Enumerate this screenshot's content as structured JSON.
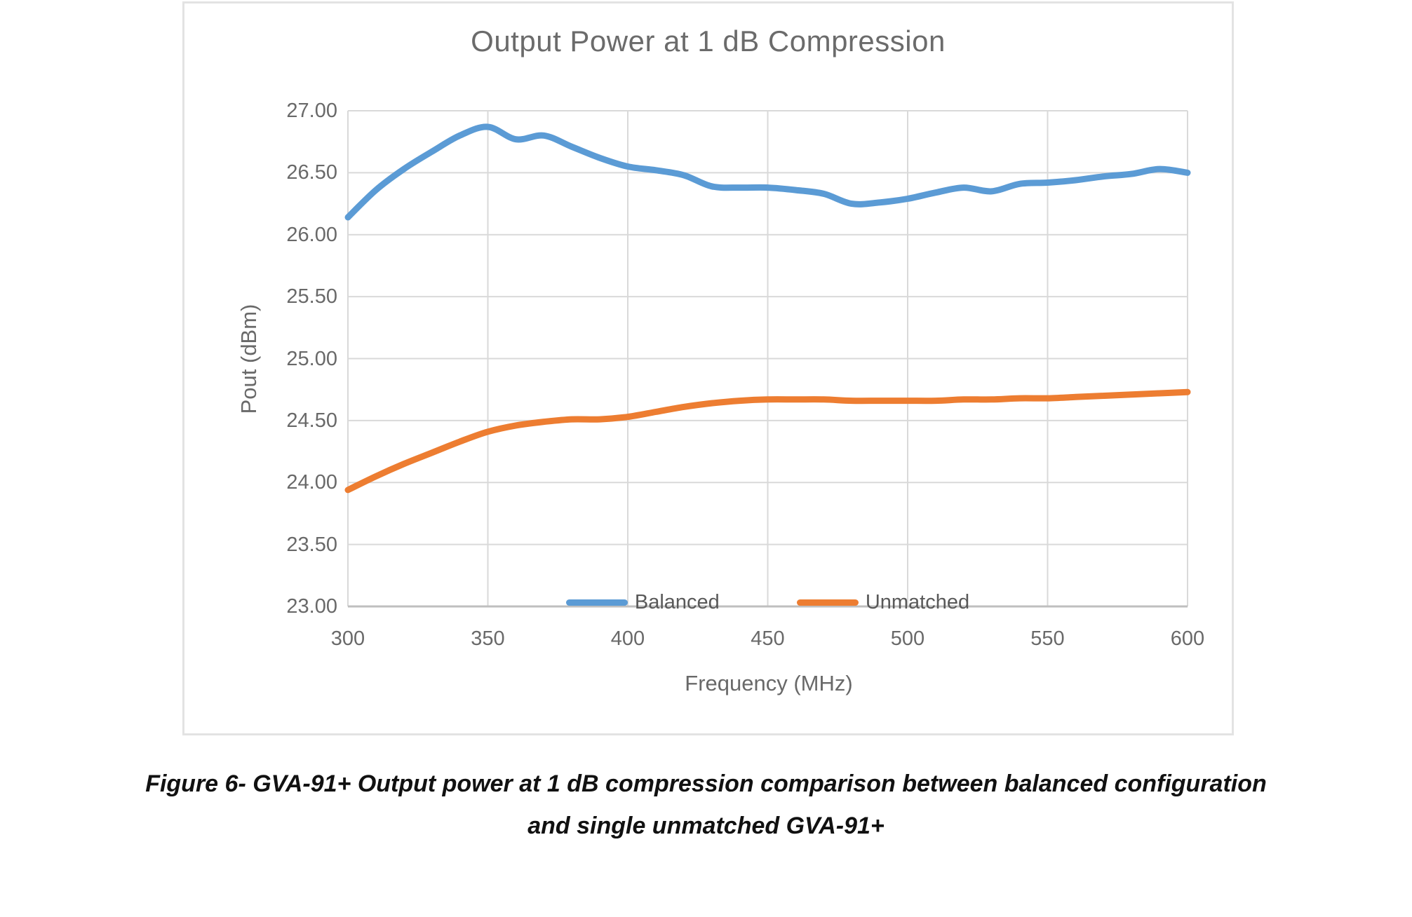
{
  "chart_data": {
    "type": "line",
    "title": "Output Power at 1 dB Compression",
    "xlabel": "Frequency (MHz)",
    "ylabel": "Pout (dBm)",
    "xlim": [
      300,
      600
    ],
    "ylim": [
      23.0,
      27.0
    ],
    "x_ticks": [
      "300",
      "350",
      "400",
      "450",
      "500",
      "550",
      "600"
    ],
    "y_ticks": [
      "27.00",
      "26.50",
      "26.00",
      "25.50",
      "25.00",
      "24.50",
      "24.00",
      "23.50",
      "23.00"
    ],
    "grid": true,
    "legend_position": "bottom-inside",
    "x": [
      300,
      310,
      320,
      330,
      340,
      350,
      360,
      370,
      380,
      390,
      400,
      410,
      420,
      430,
      440,
      450,
      460,
      470,
      480,
      490,
      500,
      510,
      520,
      530,
      540,
      550,
      560,
      570,
      580,
      590,
      600
    ],
    "series": [
      {
        "name": "Balanced",
        "color": "#5B9BD5",
        "values": [
          26.14,
          26.36,
          26.53,
          26.67,
          26.8,
          26.87,
          26.77,
          26.8,
          26.71,
          26.62,
          26.55,
          26.52,
          26.48,
          26.39,
          26.38,
          26.38,
          26.36,
          26.33,
          26.25,
          26.26,
          26.29,
          26.34,
          26.38,
          26.35,
          26.41,
          26.42,
          26.44,
          26.47,
          26.49,
          26.53,
          26.5
        ]
      },
      {
        "name": "Unmatched",
        "color": "#ED7D31",
        "values": [
          23.94,
          24.05,
          24.15,
          24.24,
          24.33,
          24.41,
          24.46,
          24.49,
          24.51,
          24.51,
          24.53,
          24.57,
          24.61,
          24.64,
          24.66,
          24.67,
          24.67,
          24.67,
          24.66,
          24.66,
          24.66,
          24.66,
          24.67,
          24.67,
          24.68,
          24.68,
          24.69,
          24.7,
          24.71,
          24.72,
          24.73
        ]
      }
    ],
    "colors": {
      "grid": "#D9D9D9",
      "axis_line": "#BFBFBF",
      "title_text": "#6B6B6B",
      "tick_text": "#696969"
    }
  },
  "caption": {
    "line1": "Figure 6- GVA-91+ Output power at 1 dB compression comparison between balanced configuration",
    "line2": "and single unmatched GVA-91+"
  }
}
